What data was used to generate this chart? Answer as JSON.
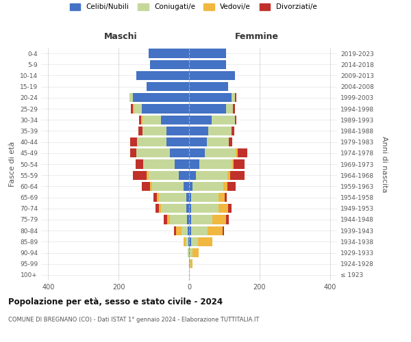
{
  "age_groups": [
    "100+",
    "95-99",
    "90-94",
    "85-89",
    "80-84",
    "75-79",
    "70-74",
    "65-69",
    "60-64",
    "55-59",
    "50-54",
    "45-49",
    "40-44",
    "35-39",
    "30-34",
    "25-29",
    "20-24",
    "15-19",
    "10-14",
    "5-9",
    "0-4"
  ],
  "birth_years": [
    "≤ 1923",
    "1924-1928",
    "1929-1933",
    "1934-1938",
    "1939-1943",
    "1944-1948",
    "1949-1953",
    "1954-1958",
    "1959-1963",
    "1964-1968",
    "1969-1973",
    "1974-1978",
    "1979-1983",
    "1984-1988",
    "1989-1993",
    "1994-1998",
    "1999-2003",
    "2004-2008",
    "2009-2013",
    "2014-2018",
    "2019-2023"
  ],
  "maschi": {
    "celibi": [
      0,
      0,
      0,
      2,
      4,
      5,
      8,
      8,
      15,
      30,
      40,
      55,
      65,
      65,
      80,
      135,
      160,
      120,
      150,
      110,
      115
    ],
    "coniugati": [
      0,
      0,
      3,
      8,
      18,
      50,
      72,
      78,
      90,
      85,
      90,
      95,
      82,
      68,
      52,
      20,
      10,
      0,
      0,
      0,
      0
    ],
    "vedovi": [
      0,
      0,
      0,
      5,
      15,
      8,
      5,
      5,
      5,
      5,
      0,
      0,
      0,
      0,
      5,
      5,
      0,
      0,
      0,
      0,
      0
    ],
    "divorziati": [
      0,
      0,
      0,
      0,
      5,
      8,
      10,
      10,
      25,
      40,
      22,
      18,
      20,
      10,
      5,
      5,
      0,
      0,
      0,
      0,
      0
    ]
  },
  "femmine": {
    "nubili": [
      0,
      2,
      2,
      5,
      5,
      5,
      5,
      5,
      10,
      20,
      30,
      45,
      50,
      55,
      65,
      105,
      120,
      110,
      130,
      105,
      105
    ],
    "coniugate": [
      0,
      2,
      8,
      20,
      48,
      62,
      78,
      78,
      88,
      88,
      92,
      88,
      62,
      65,
      65,
      20,
      10,
      0,
      0,
      0,
      0
    ],
    "vedove": [
      0,
      5,
      18,
      42,
      42,
      38,
      28,
      18,
      10,
      8,
      5,
      5,
      0,
      0,
      0,
      0,
      0,
      0,
      0,
      0,
      0
    ],
    "divorziate": [
      0,
      0,
      0,
      0,
      5,
      8,
      10,
      5,
      25,
      42,
      30,
      28,
      10,
      8,
      5,
      5,
      5,
      0,
      0,
      0,
      0
    ]
  },
  "colors": {
    "celibi_nubili": "#4472c4",
    "coniugati": "#c5d89a",
    "vedovi": "#f0b840",
    "divorziati": "#c0312b"
  },
  "title": "Popolazione per età, sesso e stato civile - 2024",
  "subtitle": "COMUNE DI BREGNANO (CO) - Dati ISTAT 1° gennaio 2024 - Elaborazione TUTTITALIA.IT",
  "xlabel_maschi": "Maschi",
  "xlabel_femmine": "Femmine",
  "ylabel_left": "Fasce di età",
  "ylabel_right": "Anni di nascita",
  "xlim": 420,
  "xticks": [
    -400,
    -200,
    0,
    200,
    400
  ],
  "legend_labels": [
    "Celibi/Nubili",
    "Coniugati/e",
    "Vedovi/e",
    "Divorziati/e"
  ],
  "background_color": "#ffffff",
  "grid_color": "#cccccc"
}
